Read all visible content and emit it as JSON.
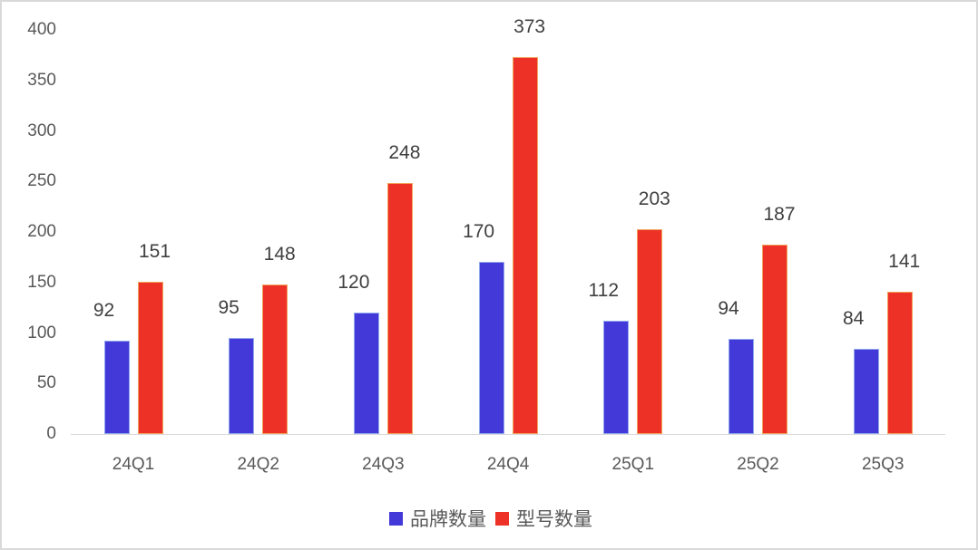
{
  "chart_data": {
    "type": "bar",
    "title": "",
    "xlabel": "",
    "ylabel": "",
    "ylim": [
      0,
      400
    ],
    "yticks": [
      0,
      50,
      100,
      150,
      200,
      250,
      300,
      350,
      400
    ],
    "grid": false,
    "legend_position": "bottom",
    "categories": [
      "24Q1",
      "24Q2",
      "24Q3",
      "24Q4",
      "25Q1",
      "25Q2",
      "25Q3"
    ],
    "series": [
      {
        "name": "品牌数量",
        "color": "#4338d8",
        "values": [
          92,
          95,
          120,
          170,
          112,
          94,
          84
        ]
      },
      {
        "name": "型号数量",
        "color": "#ee3127",
        "values": [
          151,
          148,
          248,
          373,
          203,
          187,
          141
        ]
      }
    ]
  }
}
